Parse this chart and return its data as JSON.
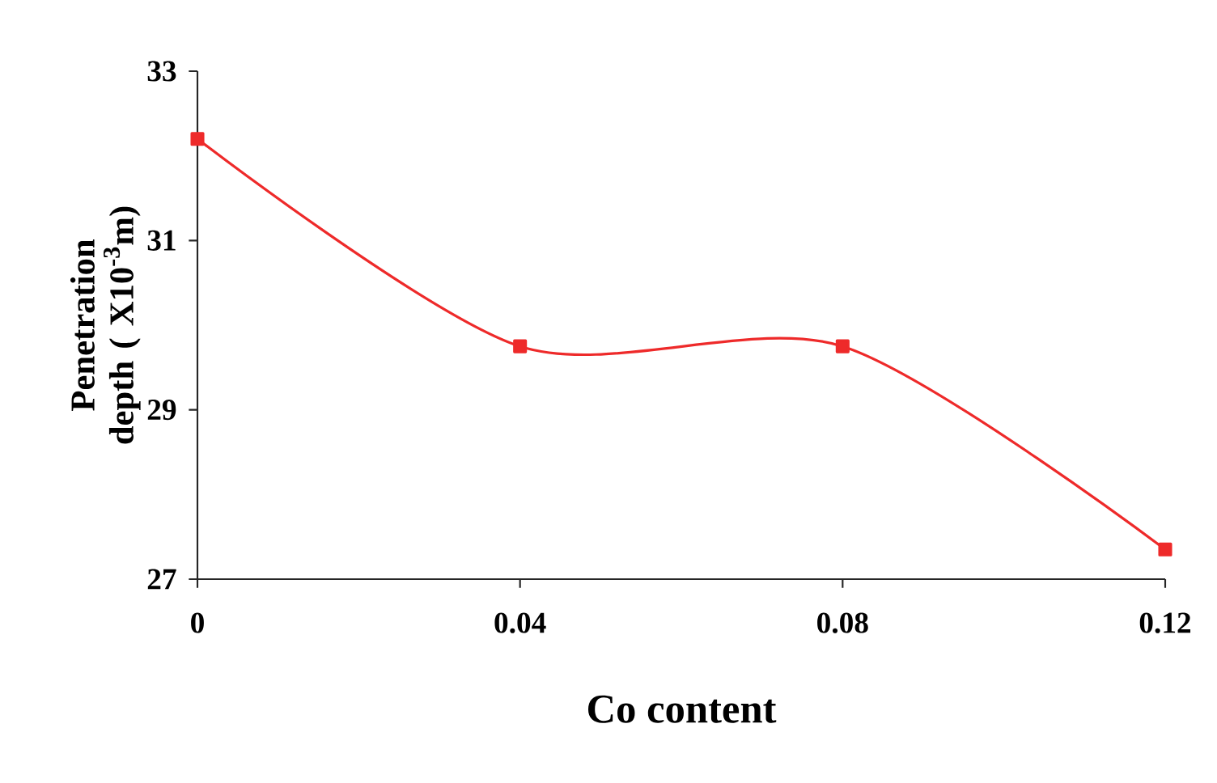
{
  "chart_data": {
    "type": "line",
    "xlabel": "Co content",
    "ylabel": "Penetration depth ( X10$^{-3}$m)",
    "x": [
      0,
      0.04,
      0.08,
      0.12
    ],
    "series": [
      {
        "color": "#ee2a2a",
        "values": [
          32.2,
          29.75,
          29.75,
          27.35
        ]
      }
    ],
    "xlim": [
      0,
      0.12
    ],
    "xticks": [
      0,
      0.04,
      0.08,
      0.12
    ],
    "ylim": [
      27,
      33
    ],
    "yticks": [
      27,
      29,
      31,
      33
    ],
    "marker": "square",
    "line_style": "solid"
  }
}
